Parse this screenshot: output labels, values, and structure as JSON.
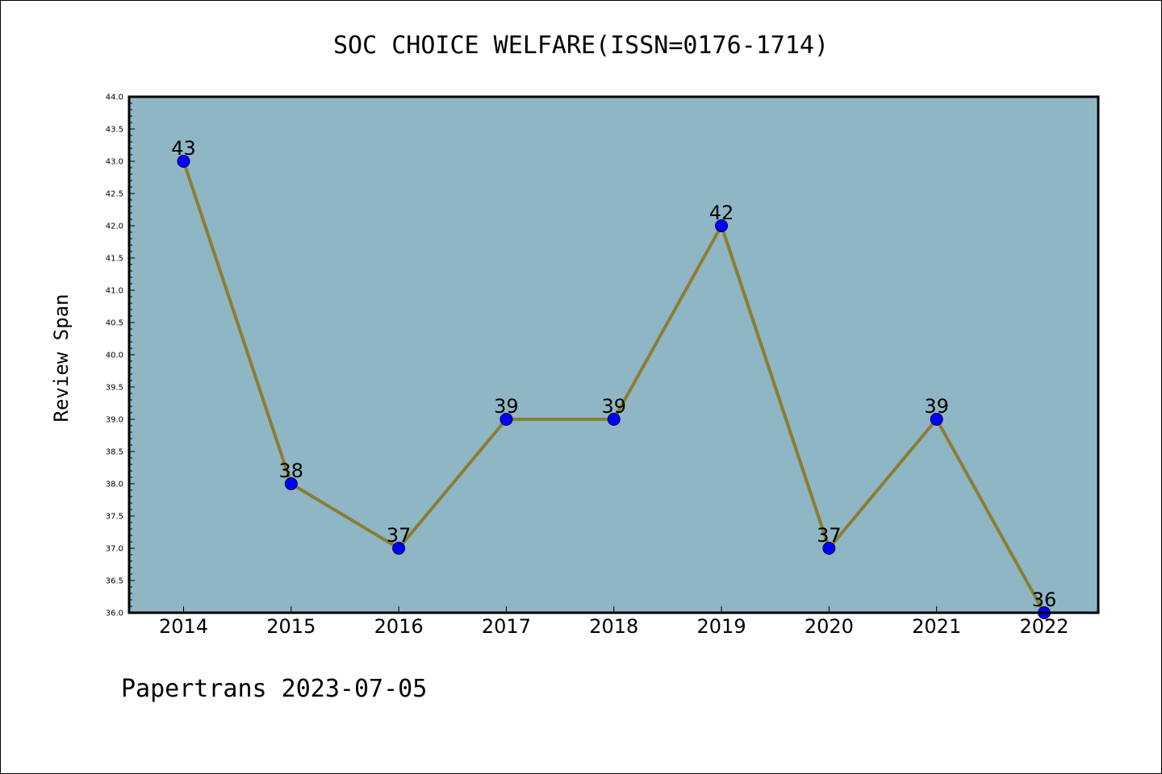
{
  "chart_data": {
    "type": "line",
    "title": "SOC CHOICE WELFARE(ISSN=0176-1714)",
    "xlabel": "",
    "ylabel": "Review Span",
    "categories": [
      "2014",
      "2015",
      "2016",
      "2017",
      "2018",
      "2019",
      "2020",
      "2021",
      "2022"
    ],
    "values": [
      43,
      38,
      37,
      39,
      39,
      42,
      37,
      39,
      36
    ],
    "data_labels": [
      "43",
      "38",
      "37",
      "39",
      "39",
      "42",
      "37",
      "39",
      "36"
    ],
    "ylim": [
      36.0,
      44.0
    ],
    "ytick_labels": [
      "36.0",
      "36.5",
      "37.0",
      "37.5",
      "38.0",
      "38.5",
      "39.0",
      "39.5",
      "40.0",
      "40.5",
      "41.0",
      "41.5",
      "42.0",
      "42.5",
      "43.0",
      "43.5",
      "44.0"
    ],
    "grid": false,
    "legend": "none",
    "colors": {
      "plot_background": "#8fb6c4",
      "line": "#8b7d33",
      "marker": "#0000ff"
    }
  },
  "footer": {
    "text": "Papertrans 2023-07-05"
  }
}
